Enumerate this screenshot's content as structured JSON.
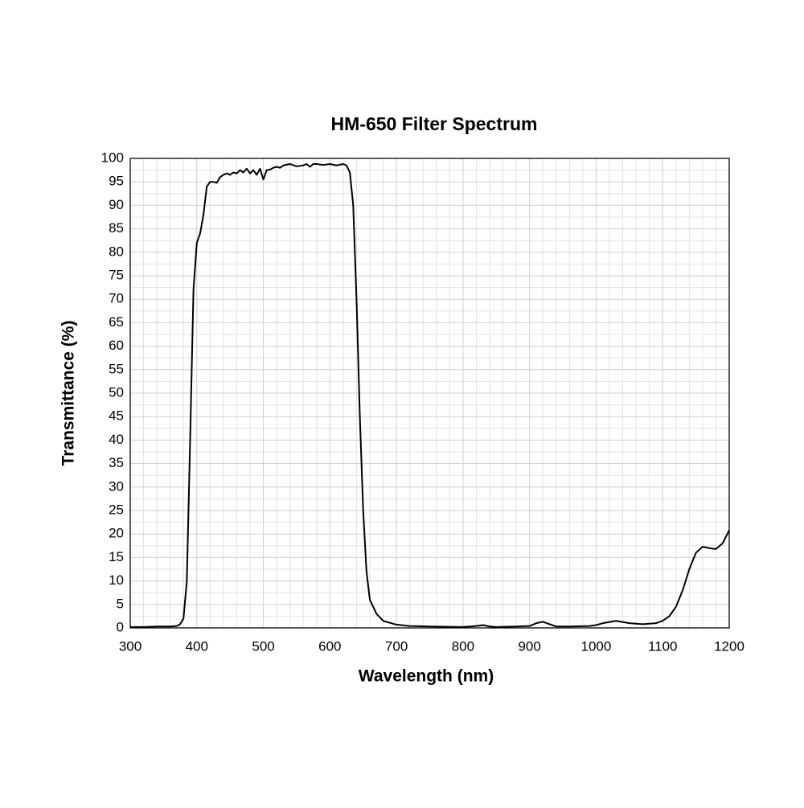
{
  "chart_data": {
    "type": "line",
    "title": "HM-650 Filter Spectrum",
    "x_label": "Wavelength (nm)",
    "y_label": "Transmittance (%)",
    "xlim": [
      300,
      1200
    ],
    "ylim": [
      0,
      100
    ],
    "xticks": [
      300,
      400,
      500,
      600,
      700,
      800,
      900,
      1000,
      1100,
      1200
    ],
    "yticks": [
      0,
      5,
      10,
      15,
      20,
      25,
      30,
      35,
      40,
      45,
      50,
      55,
      60,
      65,
      70,
      75,
      80,
      85,
      90,
      95,
      100
    ],
    "grid": true,
    "x": [
      300,
      320,
      340,
      360,
      370,
      375,
      380,
      385,
      390,
      395,
      400,
      405,
      410,
      415,
      420,
      425,
      430,
      435,
      440,
      445,
      450,
      455,
      460,
      465,
      470,
      475,
      480,
      485,
      490,
      495,
      500,
      505,
      510,
      515,
      520,
      525,
      530,
      540,
      550,
      560,
      565,
      570,
      575,
      580,
      590,
      600,
      610,
      620,
      625,
      630,
      635,
      640,
      645,
      650,
      655,
      660,
      670,
      680,
      700,
      720,
      750,
      800,
      820,
      830,
      840,
      850,
      880,
      900,
      910,
      920,
      930,
      940,
      960,
      990,
      1000,
      1010,
      1030,
      1050,
      1070,
      1090,
      1100,
      1110,
      1120,
      1130,
      1140,
      1150,
      1160,
      1170,
      1180,
      1190,
      1200
    ],
    "series": [
      {
        "name": "HM-650",
        "color": "#000000",
        "values": [
          0.2,
          0.2,
          0.3,
          0.3,
          0.4,
          0.8,
          2,
          10,
          40,
          72,
          82,
          84,
          88,
          94,
          95,
          95,
          94.8,
          96,
          96.5,
          96.8,
          96.5,
          97,
          96.8,
          97.5,
          97,
          97.8,
          96.8,
          97.5,
          96.5,
          97.8,
          95.5,
          97.5,
          97.6,
          98,
          98.2,
          98,
          98.5,
          98.8,
          98.3,
          98.5,
          98.8,
          98.2,
          98.8,
          98.8,
          98.6,
          98.8,
          98.5,
          98.8,
          98.5,
          97,
          90,
          70,
          45,
          25,
          12,
          6,
          3,
          1.5,
          0.7,
          0.4,
          0.3,
          0.2,
          0.4,
          0.6,
          0.3,
          0.2,
          0.3,
          0.4,
          1,
          1.3,
          0.8,
          0.3,
          0.3,
          0.4,
          0.6,
          1,
          1.5,
          1,
          0.8,
          1,
          1.5,
          2.5,
          4.5,
          8,
          12.5,
          16,
          17.3,
          17,
          16.8,
          18,
          20.8
        ]
      }
    ]
  }
}
